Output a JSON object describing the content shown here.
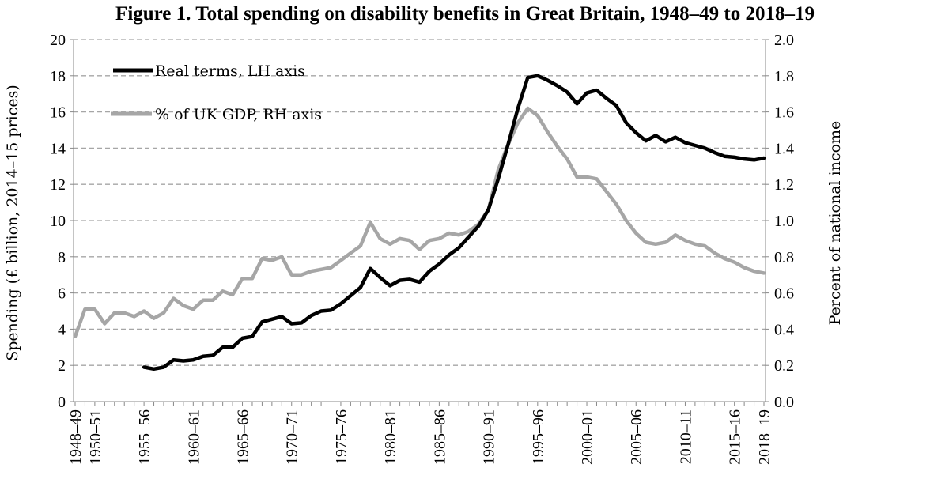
{
  "chart_data": {
    "type": "line",
    "title": "Figure 1. Total spending on disability benefits in Great Britain, 1948–49 to 2018–19",
    "ylabel_left": "Spending (£ billion, 2014–15 prices)",
    "ylabel_right": "Percent of national income",
    "ylim_left": [
      0,
      20
    ],
    "ylim_right": [
      0.0,
      2.0
    ],
    "yticks_left": [
      "0",
      "2",
      "4",
      "6",
      "8",
      "10",
      "12",
      "14",
      "16",
      "18",
      "20"
    ],
    "yticks_right": [
      "0.0",
      "0.2",
      "0.4",
      "0.6",
      "0.8",
      "1.0",
      "1.2",
      "1.4",
      "1.6",
      "1.8",
      "2.0"
    ],
    "x_tick_labels": [
      "1948–49",
      "1950–51",
      "1955–56",
      "1960–61",
      "1965–66",
      "1970–71",
      "1975–76",
      "1980–81",
      "1985–86",
      "1990–91",
      "1995–96",
      "2000–01",
      "2005–06",
      "2010–11",
      "2015–16",
      "2018–19"
    ],
    "x_tick_years": [
      1948,
      1950,
      1955,
      1960,
      1965,
      1970,
      1975,
      1980,
      1985,
      1990,
      1995,
      2000,
      2005,
      2010,
      2015,
      2018
    ],
    "x_range": [
      1948,
      2018
    ],
    "grid": "horizontal-dashed",
    "legend_position": "top-left",
    "colors": {
      "real": "#000000",
      "gdp": "#a6a6a6",
      "grid": "#a6a6a6"
    },
    "series": [
      {
        "name": "Real terms, LH axis",
        "axis": "left",
        "x": [
          1955,
          1956,
          1957,
          1958,
          1959,
          1960,
          1961,
          1962,
          1963,
          1964,
          1965,
          1966,
          1967,
          1968,
          1969,
          1970,
          1971,
          1972,
          1973,
          1974,
          1975,
          1976,
          1977,
          1978,
          1979,
          1980,
          1981,
          1982,
          1983,
          1984,
          1985,
          1986,
          1987,
          1988,
          1989,
          1990,
          1991,
          1992,
          1993,
          1994,
          1995,
          1996,
          1997,
          1998,
          1999,
          2000,
          2001,
          2002,
          2003,
          2004,
          2005,
          2006,
          2007,
          2008,
          2009,
          2010,
          2011,
          2012,
          2013,
          2014,
          2015,
          2016,
          2017,
          2018
        ],
        "values": [
          1.9,
          1.8,
          1.9,
          2.3,
          2.25,
          2.3,
          2.5,
          2.55,
          3.0,
          3.0,
          3.5,
          3.6,
          4.4,
          4.55,
          4.7,
          4.3,
          4.35,
          4.75,
          5.0,
          5.05,
          5.4,
          5.85,
          6.3,
          7.35,
          6.85,
          6.4,
          6.7,
          6.75,
          6.6,
          7.2,
          7.6,
          8.1,
          8.5,
          9.1,
          9.7,
          10.6,
          12.3,
          14.2,
          16.2,
          17.9,
          18.0,
          17.75,
          17.45,
          17.1,
          16.45,
          17.05,
          17.2,
          16.75,
          16.35,
          15.4,
          14.85,
          14.4,
          14.7,
          14.35,
          14.6,
          14.3,
          14.15,
          14.0,
          13.75,
          13.55,
          13.5,
          13.4,
          13.35,
          13.45
        ]
      },
      {
        "name": "% of UK GDP, RH axis",
        "axis": "right",
        "x": [
          1948,
          1949,
          1950,
          1951,
          1952,
          1953,
          1954,
          1955,
          1956,
          1957,
          1958,
          1959,
          1960,
          1961,
          1962,
          1963,
          1964,
          1965,
          1966,
          1967,
          1968,
          1969,
          1970,
          1971,
          1972,
          1973,
          1974,
          1975,
          1976,
          1977,
          1978,
          1979,
          1980,
          1981,
          1982,
          1983,
          1984,
          1985,
          1986,
          1987,
          1988,
          1989,
          1990,
          1991,
          1992,
          1993,
          1994,
          1995,
          1996,
          1997,
          1998,
          1999,
          2000,
          2001,
          2002,
          2003,
          2004,
          2005,
          2006,
          2007,
          2008,
          2009,
          2010,
          2011,
          2012,
          2013,
          2014,
          2015,
          2016,
          2017,
          2018
        ],
        "values": [
          0.36,
          0.51,
          0.51,
          0.43,
          0.49,
          0.49,
          0.47,
          0.5,
          0.46,
          0.49,
          0.57,
          0.53,
          0.51,
          0.56,
          0.56,
          0.61,
          0.59,
          0.68,
          0.68,
          0.79,
          0.78,
          0.8,
          0.7,
          0.7,
          0.72,
          0.73,
          0.74,
          0.78,
          0.82,
          0.86,
          0.99,
          0.9,
          0.87,
          0.9,
          0.89,
          0.84,
          0.89,
          0.9,
          0.93,
          0.92,
          0.94,
          0.98,
          1.06,
          1.28,
          1.42,
          1.54,
          1.62,
          1.58,
          1.49,
          1.41,
          1.34,
          1.24,
          1.24,
          1.23,
          1.16,
          1.09,
          1.0,
          0.93,
          0.88,
          0.87,
          0.88,
          0.92,
          0.89,
          0.87,
          0.86,
          0.82,
          0.79,
          0.77,
          0.74,
          0.72,
          0.71
        ]
      }
    ]
  }
}
